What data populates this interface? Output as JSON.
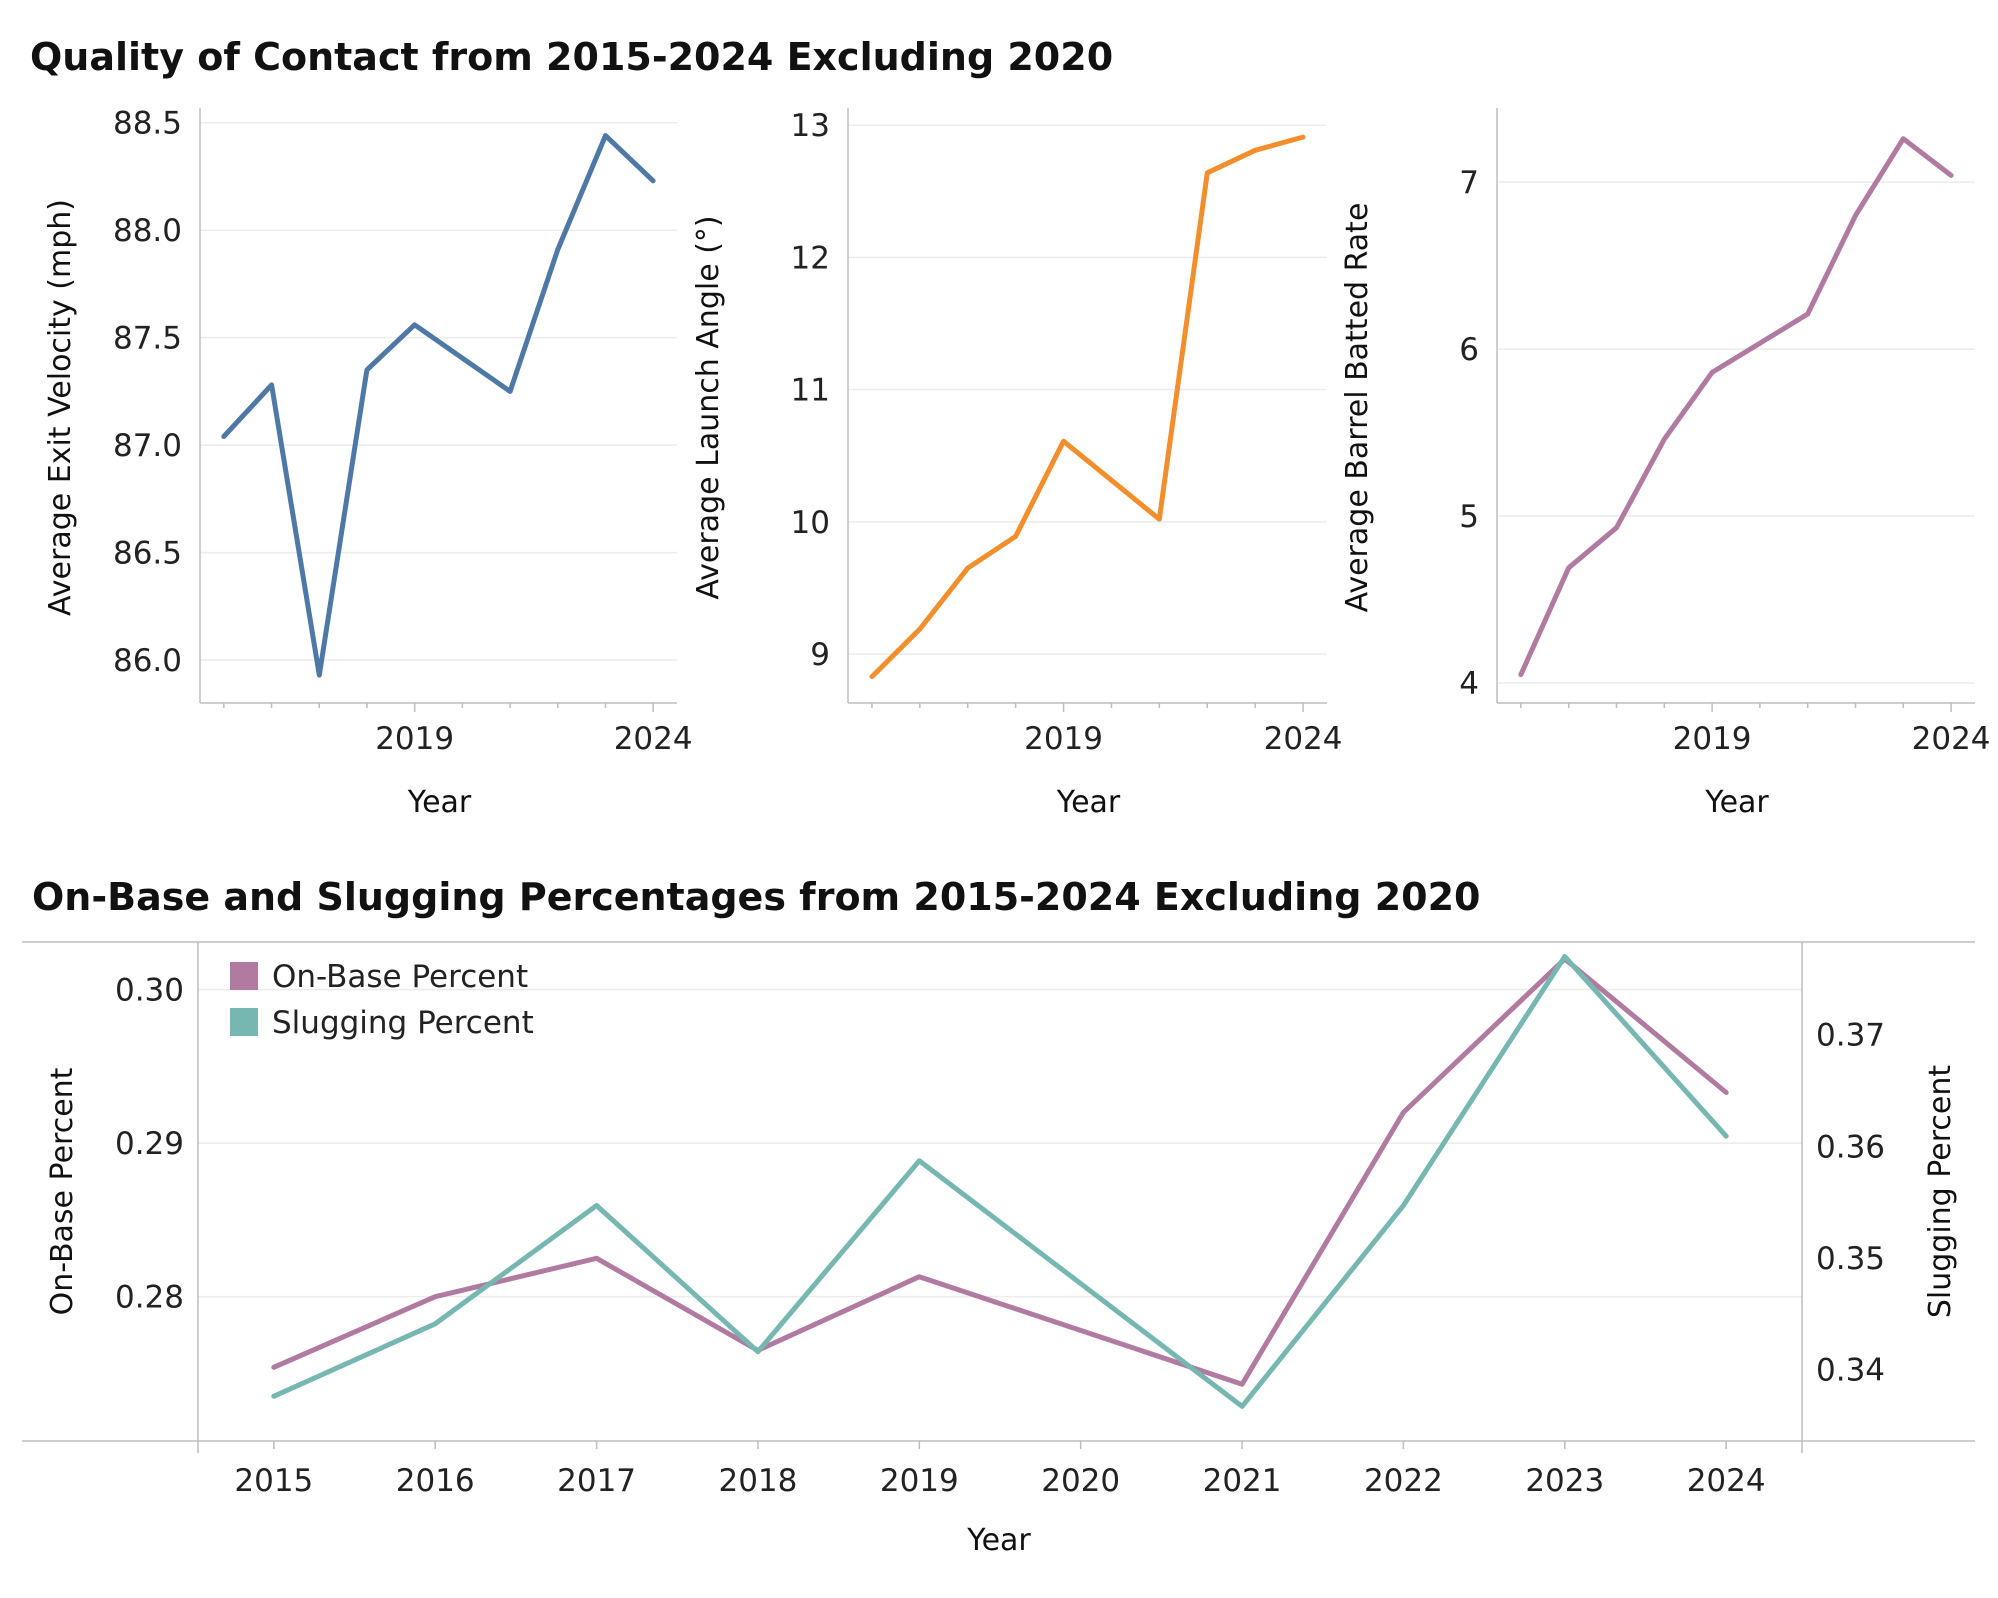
{
  "titles": {
    "top": "Quality of Contact from 2015-2024 Excluding 2020",
    "bottom": "On-Base and Slugging Percentages from 2015-2024 Excluding 2020"
  },
  "chart_data": [
    {
      "type": "line",
      "title": "Quality of Contact from 2015-2024 Excluding 2020",
      "xlabel": "Year",
      "ylabel": "Average Exit Velocity (mph)",
      "color": "#4e79a7",
      "x": [
        2015,
        2016,
        2017,
        2018,
        2019,
        2021,
        2022,
        2023,
        2024
      ],
      "values": [
        87.04,
        87.28,
        85.93,
        87.35,
        87.56,
        87.25,
        87.91,
        88.44,
        88.23
      ],
      "xlim": [
        2014.5,
        2024.5
      ],
      "ylim": [
        85.8,
        88.55
      ],
      "yticks": [
        86.0,
        86.5,
        87.0,
        87.5,
        88.0,
        88.5
      ],
      "yticklabels": [
        "86.0",
        "86.5",
        "87.0",
        "87.5",
        "88.0",
        "88.5"
      ],
      "xticks": [
        2019,
        2024
      ],
      "xticklabels": [
        "2019",
        "2024"
      ]
    },
    {
      "type": "line",
      "title": "",
      "xlabel": "Year",
      "ylabel": "Average Launch Angle (°)",
      "color": "#f28e2b",
      "x": [
        2015,
        2016,
        2017,
        2018,
        2019,
        2021,
        2022,
        2023,
        2024
      ],
      "values": [
        8.83,
        9.19,
        9.65,
        9.89,
        10.61,
        10.02,
        12.64,
        12.81,
        12.91
      ],
      "xlim": [
        2014.5,
        2024.5
      ],
      "ylim": [
        8.63,
        13.1
      ],
      "yticks": [
        9,
        10,
        11,
        12,
        13
      ],
      "yticklabels": [
        "9",
        "10",
        "11",
        "12",
        "13"
      ],
      "xticks": [
        2019,
        2024
      ],
      "xticklabels": [
        "2019",
        "2024"
      ]
    },
    {
      "type": "line",
      "title": "",
      "xlabel": "Year",
      "ylabel": "Average Barrel Batted Rate",
      "color": "#b07aa1",
      "x": [
        2015,
        2016,
        2017,
        2018,
        2019,
        2021,
        2022,
        2023,
        2024
      ],
      "values": [
        4.05,
        4.69,
        4.93,
        5.46,
        5.86,
        6.21,
        6.8,
        7.26,
        7.04
      ],
      "xlim": [
        2014.5,
        2024.5
      ],
      "ylim": [
        3.88,
        7.42
      ],
      "yticks": [
        4,
        5,
        6,
        7
      ],
      "yticklabels": [
        "4",
        "5",
        "6",
        "7"
      ],
      "xticks": [
        2019,
        2024
      ],
      "xticklabels": [
        "2019",
        "2024"
      ]
    },
    {
      "type": "line",
      "title": "On-Base and Slugging Percentages from 2015-2024 Excluding 2020",
      "xlabel": "Year",
      "ylabel": "On-Base Percent",
      "ylabel_right": "Slugging Percent",
      "categories": [
        "2015",
        "2016",
        "2017",
        "2018",
        "2019",
        "2020",
        "2021",
        "2022",
        "2023",
        "2024"
      ],
      "xlim": [
        2014.53,
        2024.47
      ],
      "series": [
        {
          "name": "On-Base Percent",
          "axis": "left",
          "color": "#b07aa1",
          "x": [
            2015,
            2016,
            2017,
            2018,
            2019,
            2021,
            2022,
            2023,
            2024
          ],
          "values": [
            0.2754,
            0.28,
            0.2825,
            0.2765,
            0.2813,
            0.2743,
            0.292,
            0.302,
            0.2933
          ]
        },
        {
          "name": "Slugging Percent",
          "axis": "right",
          "color": "#76b7b2",
          "x": [
            2015,
            2016,
            2017,
            2018,
            2019,
            2021,
            2022,
            2023,
            2024
          ],
          "values": [
            0.3376,
            0.3441,
            0.3547,
            0.3416,
            0.3587,
            0.3367,
            0.3547,
            0.377,
            0.3609
          ]
        }
      ],
      "ylim_left": [
        0.2706,
        0.3031
      ],
      "ylim_right": [
        0.3336,
        0.3783
      ],
      "yticks_left": [
        0.28,
        0.29,
        0.3
      ],
      "yticklabels_left": [
        "0.28",
        "0.29",
        "0.30"
      ],
      "yticks_right": [
        0.34,
        0.35,
        0.36,
        0.37
      ],
      "yticklabels_right": [
        "0.34",
        "0.35",
        "0.36",
        "0.37"
      ],
      "legend": "top-left"
    }
  ]
}
